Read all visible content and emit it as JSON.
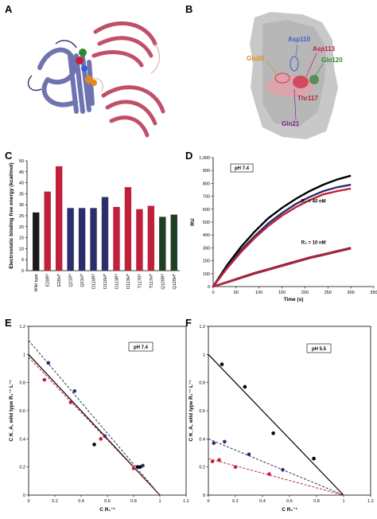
{
  "panels": {
    "A": "A",
    "B": "B",
    "C": "C",
    "D": "D",
    "E": "E",
    "F": "F"
  },
  "structure_labels": [
    {
      "text": "Asp110",
      "color": "#3a5fcd"
    },
    {
      "text": "Asp113",
      "color": "#c0203a"
    },
    {
      "text": "Glu20",
      "color": "#e08a1e"
    },
    {
      "text": "Gln120",
      "color": "#2f8a2f"
    },
    {
      "text": "Thr117",
      "color": "#c0203a"
    },
    {
      "text": "Gln21",
      "color": "#7b2a8a"
    }
  ],
  "colors": {
    "wildtype": "#1a1a1a",
    "red": "#c0203a",
    "navy": "#2b2e6b",
    "green": "#1f3f22",
    "protein_blue": "#6f74b0",
    "protein_pink": "#c0506a"
  },
  "chart_data": [
    {
      "panel": "C",
      "type": "bar",
      "ylabel": "Electrostatic binding free energy (kcal/mol)",
      "ylim": [
        0,
        50
      ],
      "yticks": [
        0,
        5,
        10,
        15,
        20,
        25,
        30,
        35,
        40,
        45,
        50
      ],
      "categories": [
        "Wild type",
        "E20R",
        "E20H",
        "Q21R",
        "Q21H",
        "D110R",
        "D110H",
        "D113R",
        "D113H",
        "T117R",
        "T117H",
        "Q120R",
        "Q120H"
      ],
      "category_superscripts": [
        "",
        "a",
        "b",
        "a",
        "b",
        "a",
        "b",
        "a",
        "b",
        "a",
        "b",
        "a",
        "b"
      ],
      "values": [
        26.5,
        36,
        47.5,
        28.5,
        28.5,
        28.5,
        33.5,
        29,
        38,
        28,
        29.5,
        24.5,
        25.5
      ],
      "bar_colors": [
        "#1a1a1a",
        "#c0203a",
        "#c0203a",
        "#2b2e6b",
        "#2b2e6b",
        "#2b2e6b",
        "#2b2e6b",
        "#c0203a",
        "#c0203a",
        "#c0203a",
        "#c0203a",
        "#1f3f22",
        "#1f3f22"
      ]
    },
    {
      "panel": "D",
      "type": "line",
      "xlabel": "Time (s)",
      "ylabel": "RU",
      "xlim": [
        0,
        350
      ],
      "ylim": [
        0,
        1000
      ],
      "xticks": [
        0,
        50,
        100,
        150,
        200,
        250,
        300,
        350
      ],
      "yticks": [
        0,
        100,
        200,
        300,
        400,
        500,
        600,
        700,
        800,
        900,
        1000
      ],
      "yticklabels": [
        "0",
        "100",
        "200",
        "300",
        "400",
        "500",
        "600",
        "700",
        "800",
        "900",
        "1,000"
      ],
      "annotation": "pH 7.4",
      "curve_labels": [
        "R₀ = 40 nM",
        "R₀ = 10 nM"
      ],
      "series": [
        {
          "color": "#000000",
          "x": [
            0,
            30,
            60,
            90,
            120,
            150,
            180,
            210,
            240,
            270,
            300
          ],
          "y": [
            0,
            165,
            305,
            425,
            530,
            610,
            680,
            740,
            790,
            830,
            860
          ]
        },
        {
          "color": "#2b2e6b",
          "x": [
            0,
            30,
            60,
            90,
            120,
            150,
            180,
            210,
            240,
            270,
            300
          ],
          "y": [
            0,
            150,
            280,
            390,
            490,
            570,
            640,
            695,
            740,
            770,
            790
          ]
        },
        {
          "color": "#c0203a",
          "x": [
            0,
            30,
            60,
            90,
            120,
            150,
            180,
            210,
            240,
            270,
            300
          ],
          "y": [
            0,
            140,
            265,
            375,
            470,
            550,
            615,
            670,
            715,
            740,
            760
          ]
        },
        {
          "color": "#000000",
          "x": [
            0,
            30,
            60,
            90,
            120,
            150,
            180,
            210,
            240,
            270,
            300
          ],
          "y": [
            0,
            35,
            70,
            105,
            135,
            165,
            195,
            225,
            250,
            275,
            300
          ]
        },
        {
          "color": "#2b2e6b",
          "x": [
            0,
            30,
            60,
            90,
            120,
            150,
            180,
            210,
            240,
            270,
            300
          ],
          "y": [
            0,
            32,
            66,
            100,
            130,
            160,
            190,
            220,
            245,
            270,
            295
          ]
        },
        {
          "color": "#c0203a",
          "x": [
            0,
            30,
            60,
            90,
            120,
            150,
            180,
            210,
            240,
            270,
            300
          ],
          "y": [
            0,
            34,
            68,
            102,
            133,
            162,
            192,
            222,
            248,
            273,
            297
          ]
        }
      ]
    },
    {
      "panel": "E",
      "type": "scatter",
      "xlabel": "C R₁⁻¹",
      "ylabel": "C K_A, wild type R₁⁻¹ L⁻¹",
      "xlim": [
        0,
        1.2
      ],
      "ylim": [
        0,
        1.2
      ],
      "xticks": [
        0,
        0.2,
        0.4,
        0.6,
        0.8,
        1.0,
        1.2
      ],
      "yticks": [
        0,
        0.2,
        0.4,
        0.6,
        0.8,
        1.0,
        1.2
      ],
      "annotation": "pH 7.4",
      "series": [
        {
          "color": "#000000",
          "points": [
            [
              0.5,
              0.36
            ],
            [
              0.83,
              0.2
            ],
            [
              0.85,
              0.2
            ]
          ],
          "fit": [
            [
              0,
              1.0
            ],
            [
              1.0,
              0
            ]
          ],
          "dashed": false
        },
        {
          "color": "#2b2e6b",
          "points": [
            [
              0.15,
              0.94
            ],
            [
              0.35,
              0.74
            ],
            [
              0.58,
              0.42
            ],
            [
              0.87,
              0.21
            ]
          ],
          "fit": [
            [
              0,
              1.1
            ],
            [
              1.0,
              0
            ]
          ],
          "dashed": true
        },
        {
          "color": "#c0203a",
          "points": [
            [
              0.12,
              0.82
            ],
            [
              0.32,
              0.66
            ],
            [
              0.55,
              0.4
            ],
            [
              0.8,
              0.19
            ]
          ],
          "fit": [
            [
              0,
              0.98
            ],
            [
              1.0,
              0
            ]
          ],
          "dashed": true
        }
      ]
    },
    {
      "panel": "F",
      "type": "scatter",
      "xlabel": "C R₁⁻¹",
      "ylabel": "C K_A, wild type R₁⁻¹ L⁻¹",
      "xlim": [
        0,
        1.2
      ],
      "ylim": [
        0,
        1.2
      ],
      "xticks": [
        0,
        0.2,
        0.4,
        0.6,
        0.8,
        1.0,
        1.2
      ],
      "yticks": [
        0,
        0.2,
        0.4,
        0.6,
        0.8,
        1.0,
        1.2
      ],
      "annotation": "pH 5.5",
      "series": [
        {
          "color": "#000000",
          "points": [
            [
              0.1,
              0.93
            ],
            [
              0.27,
              0.77
            ],
            [
              0.48,
              0.44
            ],
            [
              0.78,
              0.26
            ]
          ],
          "fit": [
            [
              0,
              1.0
            ],
            [
              1.0,
              0
            ]
          ],
          "dashed": false
        },
        {
          "color": "#2b2e6b",
          "points": [
            [
              0.04,
              0.37
            ],
            [
              0.12,
              0.38
            ],
            [
              0.3,
              0.29
            ],
            [
              0.55,
              0.18
            ]
          ],
          "fit": [
            [
              0,
              0.4
            ],
            [
              1.0,
              0
            ]
          ],
          "dashed": true
        },
        {
          "color": "#c0203a",
          "points": [
            [
              0.03,
              0.24
            ],
            [
              0.08,
              0.25
            ],
            [
              0.2,
              0.2
            ],
            [
              0.45,
              0.15
            ]
          ],
          "fit": [
            [
              0,
              0.26
            ],
            [
              1.0,
              0
            ]
          ],
          "dashed": true
        }
      ]
    }
  ]
}
